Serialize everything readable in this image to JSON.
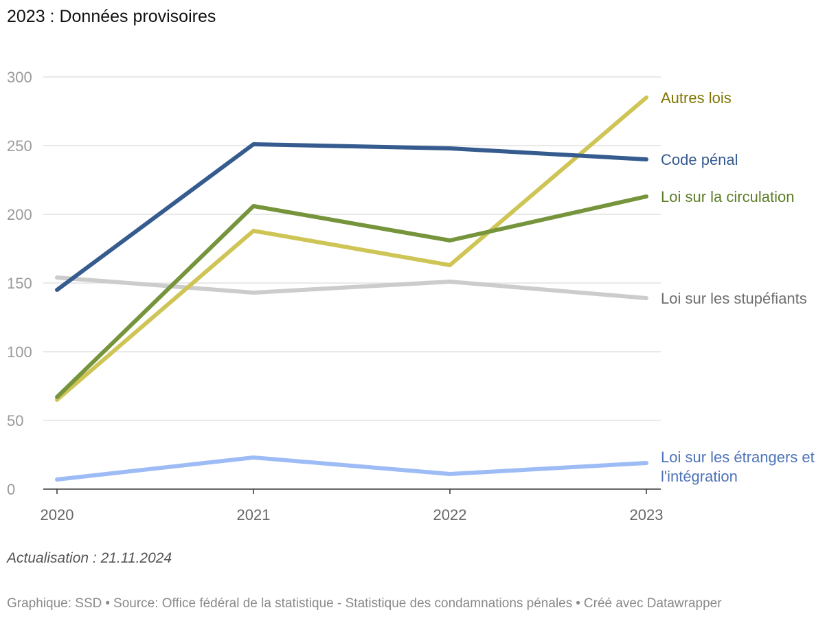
{
  "subtitle": "2023 : Données provisoires",
  "chart_data": {
    "type": "line",
    "title": "2023 : Données provisoires",
    "x": [
      "2020",
      "2021",
      "2022",
      "2023"
    ],
    "ylim": [
      0,
      300
    ],
    "yticks": [
      0,
      50,
      100,
      150,
      200,
      250,
      300
    ],
    "grid": true,
    "legend": "direct labels at line ends (right)",
    "series": [
      {
        "name": "Loi sur les stupéfiants",
        "label_lines": [
          "Loi sur les stupéfiants"
        ],
        "color": "#cccccc",
        "label_color": "#6e6e6e",
        "values": [
          154,
          143,
          151,
          139
        ]
      },
      {
        "name": "Loi sur les étrangers et l'intégration",
        "label_lines": [
          "Loi sur les étrangers et",
          "l'intégration"
        ],
        "color": "#9dbcf5",
        "label_color": "#4d73b8",
        "values": [
          7,
          23,
          11,
          19
        ]
      },
      {
        "name": "Autres lois",
        "label_lines": [
          "Autres lois"
        ],
        "color": "#cfc556",
        "label_color": "#807400",
        "values": [
          65,
          188,
          163,
          285
        ]
      },
      {
        "name": "Loi sur la circulation",
        "label_lines": [
          "Loi sur la circulation"
        ],
        "color": "#76943c",
        "label_color": "#5d7d26",
        "values": [
          67,
          206,
          181,
          213
        ]
      },
      {
        "name": "Code pénal",
        "label_lines": [
          "Code pénal"
        ],
        "color": "#365c8f",
        "label_color": "#365c8f",
        "values": [
          145,
          251,
          248,
          240
        ]
      }
    ]
  },
  "note": "Actualisation : 21.11.2024",
  "footer": {
    "graphique": "Graphique: SSD",
    "separator": "•",
    "source": "Source: Office fédéral de la statistique - Statistique des condamnations pénales",
    "credit": "Créé avec Datawrapper"
  }
}
